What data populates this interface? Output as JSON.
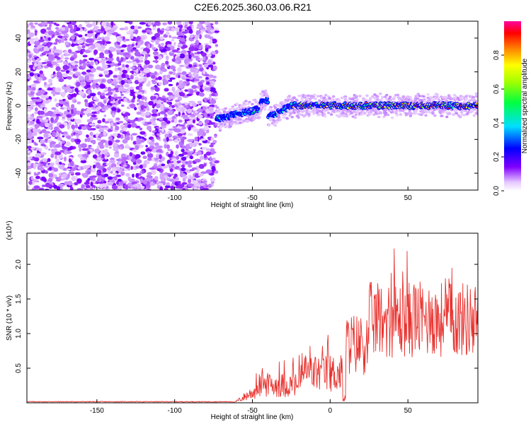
{
  "title": "C2E6.2025.360.03.06.R21",
  "colors": {
    "snr_line": "#e8322e",
    "cold": "#7a00e0",
    "hot": "#e00000"
  },
  "chart_data": [
    {
      "type": "heatmap",
      "xlabel": "Height of straight line (km)",
      "ylabel": "Frequency (Hz)",
      "xlim": [
        -195,
        95
      ],
      "ylim": [
        -50,
        50
      ],
      "xticks": [
        -150,
        -100,
        -50,
        0,
        50
      ],
      "yticks": [
        40,
        20,
        0,
        -20,
        -40
      ],
      "colorbar": {
        "label": "Normalized spectral amplitude",
        "range": [
          0,
          1
        ],
        "ticks": [
          "0.0",
          "0.2",
          "0.4",
          "0.6",
          "0.8"
        ]
      }
    },
    {
      "type": "line",
      "xlabel": "Height of straight line (km)",
      "ylabel": "SNR (10 * v/v)",
      "scale_label": "(x10⁴)",
      "xlim": [
        -195,
        95
      ],
      "ylim": [
        0,
        2.45
      ],
      "xticks": [
        -150,
        -100,
        -50,
        0,
        50
      ],
      "yticks": [
        "0.5",
        "1.0",
        "1.5",
        "2.0"
      ]
    }
  ]
}
